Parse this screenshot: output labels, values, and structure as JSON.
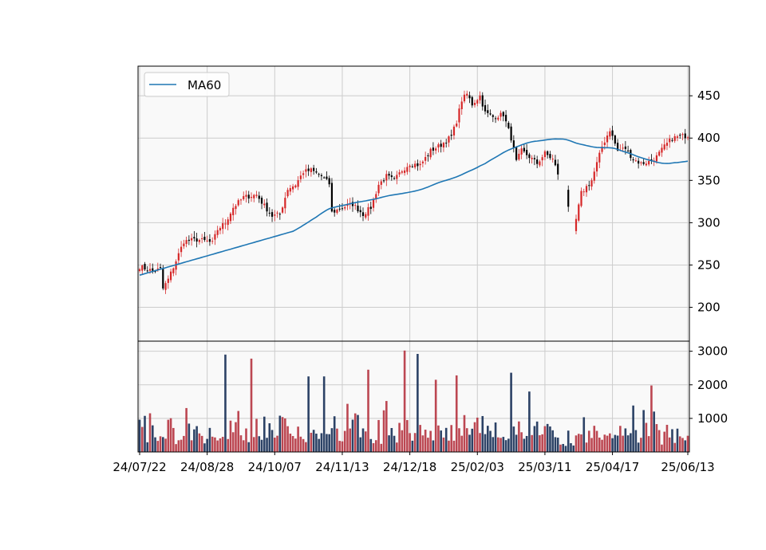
{
  "chart_data": {
    "type": "candlestick",
    "title": "",
    "xlabel": "",
    "ylabel": "",
    "grid": true,
    "legend_position": "top-left",
    "colors": {
      "up": "#d62728",
      "down": "#000000",
      "ma": "#1f77b4",
      "vol_up": "#b5333f",
      "vol_down": "#152d55",
      "background": "#f9f9f9"
    },
    "x_ticks": [
      "24/07/22",
      "24/08/28",
      "24/10/07",
      "24/11/13",
      "24/12/18",
      "25/02/03",
      "25/03/11",
      "25/04/17",
      "25/06/13"
    ],
    "price_axis": {
      "ylim": [
        160,
        485
      ],
      "ticks": [
        200,
        250,
        300,
        350,
        400,
        450
      ]
    },
    "volume_axis": {
      "ylim": [
        0,
        3300
      ],
      "ticks": [
        1000,
        2000,
        3000
      ]
    },
    "close_anchors": [
      {
        "i": 0,
        "v": 248
      },
      {
        "i": 5,
        "v": 243
      },
      {
        "i": 8,
        "v": 245
      },
      {
        "i": 9,
        "v": 222
      },
      {
        "i": 11,
        "v": 233
      },
      {
        "i": 14,
        "v": 255
      },
      {
        "i": 17,
        "v": 278
      },
      {
        "i": 22,
        "v": 280
      },
      {
        "i": 26,
        "v": 278
      },
      {
        "i": 28,
        "v": 276
      },
      {
        "i": 30,
        "v": 292
      },
      {
        "i": 33,
        "v": 300
      },
      {
        "i": 36,
        "v": 318
      },
      {
        "i": 40,
        "v": 330
      },
      {
        "i": 45,
        "v": 333
      },
      {
        "i": 48,
        "v": 320
      },
      {
        "i": 51,
        "v": 308
      },
      {
        "i": 54,
        "v": 310
      },
      {
        "i": 57,
        "v": 340
      },
      {
        "i": 60,
        "v": 345
      },
      {
        "i": 63,
        "v": 360
      },
      {
        "i": 66,
        "v": 362
      },
      {
        "i": 70,
        "v": 355
      },
      {
        "i": 73,
        "v": 346
      },
      {
        "i": 74,
        "v": 312
      },
      {
        "i": 78,
        "v": 318
      },
      {
        "i": 82,
        "v": 322
      },
      {
        "i": 86,
        "v": 310
      },
      {
        "i": 89,
        "v": 318
      },
      {
        "i": 92,
        "v": 345
      },
      {
        "i": 95,
        "v": 355
      },
      {
        "i": 98,
        "v": 350
      },
      {
        "i": 101,
        "v": 362
      },
      {
        "i": 104,
        "v": 370
      },
      {
        "i": 108,
        "v": 368
      },
      {
        "i": 112,
        "v": 385
      },
      {
        "i": 116,
        "v": 392
      },
      {
        "i": 120,
        "v": 402
      },
      {
        "i": 122,
        "v": 420
      },
      {
        "i": 124,
        "v": 445
      },
      {
        "i": 126,
        "v": 452
      },
      {
        "i": 128,
        "v": 440
      },
      {
        "i": 131,
        "v": 450
      },
      {
        "i": 133,
        "v": 430
      },
      {
        "i": 136,
        "v": 425
      },
      {
        "i": 140,
        "v": 428
      },
      {
        "i": 143,
        "v": 400
      },
      {
        "i": 145,
        "v": 372
      },
      {
        "i": 147,
        "v": 385
      },
      {
        "i": 150,
        "v": 378
      },
      {
        "i": 153,
        "v": 370
      },
      {
        "i": 156,
        "v": 382
      },
      {
        "i": 159,
        "v": 375
      },
      {
        "i": 161,
        "v": 358
      },
      {
        "i": 163,
        "v": 360
      },
      {
        "i": 165,
        "v": 320
      },
      {
        "i": 167,
        "v": 288
      },
      {
        "i": 170,
        "v": 335
      },
      {
        "i": 174,
        "v": 350
      },
      {
        "i": 178,
        "v": 390
      },
      {
        "i": 181,
        "v": 410
      },
      {
        "i": 184,
        "v": 385
      },
      {
        "i": 187,
        "v": 388
      },
      {
        "i": 190,
        "v": 375
      },
      {
        "i": 193,
        "v": 370
      },
      {
        "i": 196,
        "v": 372
      },
      {
        "i": 199,
        "v": 378
      },
      {
        "i": 202,
        "v": 390
      },
      {
        "i": 205,
        "v": 400
      },
      {
        "i": 208,
        "v": 402
      },
      {
        "i": 211,
        "v": 403
      }
    ],
    "gaps": [
      [
        162,
        164
      ],
      [
        166,
        167
      ]
    ],
    "volume_peaks": [
      {
        "i": 33,
        "v": 2900
      },
      {
        "i": 43,
        "v": 2780
      },
      {
        "i": 65,
        "v": 2250
      },
      {
        "i": 88,
        "v": 2450
      },
      {
        "i": 102,
        "v": 3020
      },
      {
        "i": 107,
        "v": 2920
      },
      {
        "i": 114,
        "v": 2150
      },
      {
        "i": 122,
        "v": 2280
      },
      {
        "i": 143,
        "v": 2360
      },
      {
        "i": 150,
        "v": 1800
      },
      {
        "i": 197,
        "v": 1980
      },
      {
        "i": 71,
        "v": 2250
      }
    ],
    "series": [
      {
        "name": "MA60"
      }
    ]
  }
}
